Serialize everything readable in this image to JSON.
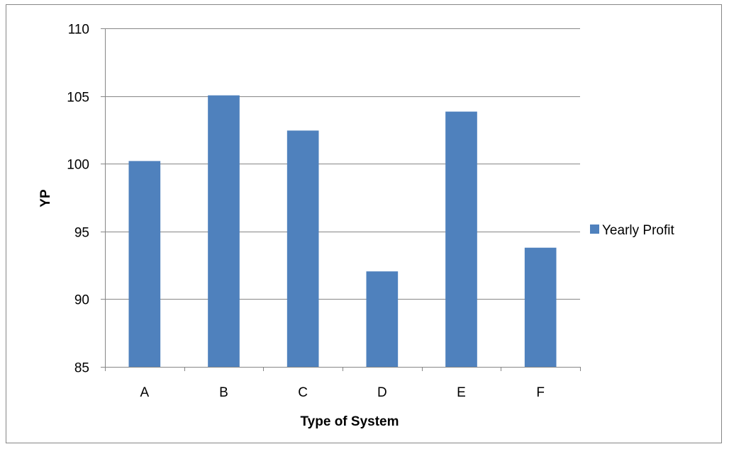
{
  "chart_data": {
    "type": "bar",
    "title": "",
    "xlabel": "Type of System",
    "ylabel": "YP",
    "categories": [
      "A",
      "B",
      "C",
      "D",
      "E",
      "F"
    ],
    "series": [
      {
        "name": "Yearly Profit",
        "values": [
          100.2,
          105.05,
          102.45,
          92.05,
          103.85,
          93.8
        ],
        "color": "#4F81BD"
      }
    ],
    "ylim": [
      85,
      110
    ],
    "yticks": [
      85,
      90,
      95,
      100,
      105,
      110
    ],
    "grid": true,
    "legend_position": "right"
  }
}
